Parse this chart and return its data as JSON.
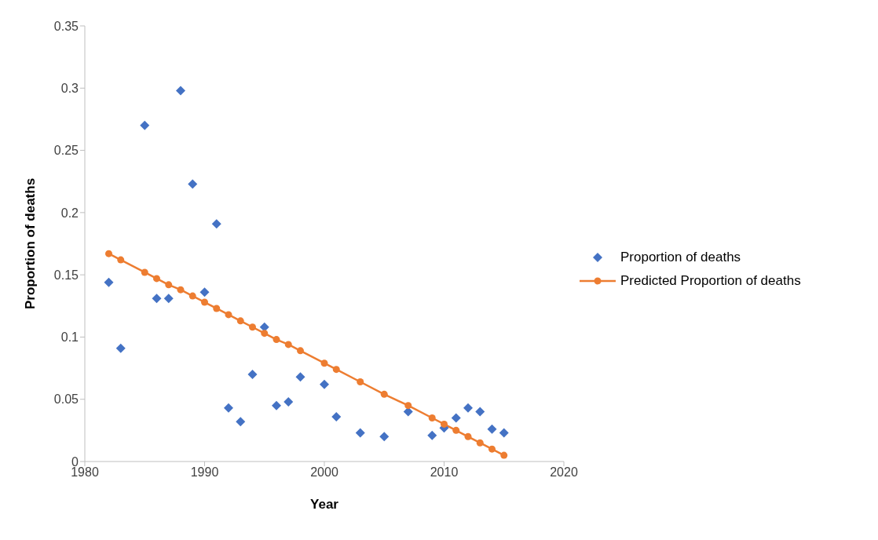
{
  "chart_data": {
    "type": "scatter",
    "xlabel": "Year",
    "ylabel": "Proportion of deaths",
    "x": [
      1982,
      1983,
      1985,
      1986,
      1987,
      1988,
      1989,
      1990,
      1991,
      1992,
      1993,
      1994,
      1995,
      1996,
      1997,
      1998,
      2000,
      2001,
      2003,
      2005,
      2007,
      2009,
      2010,
      2011,
      2012,
      2013,
      2014,
      2015
    ],
    "series": [
      {
        "name": "Proportion of deaths",
        "marker": "diamond",
        "color": "#4472c4",
        "values": [
          0.144,
          0.091,
          0.27,
          0.131,
          0.131,
          0.298,
          0.223,
          0.136,
          0.191,
          0.043,
          0.032,
          0.07,
          0.108,
          0.045,
          0.048,
          0.068,
          0.062,
          0.036,
          0.023,
          0.02,
          0.04,
          0.021,
          0.027,
          0.035,
          0.043,
          0.04,
          0.026,
          0.023
        ]
      },
      {
        "name": "Predicted Proportion of deaths",
        "type": "line",
        "marker": "circle",
        "line_style": "solid",
        "color": "#ed7d31",
        "values": [
          0.167,
          0.162,
          0.152,
          0.147,
          0.142,
          0.138,
          0.133,
          0.128,
          0.123,
          0.118,
          0.113,
          0.108,
          0.103,
          0.098,
          0.094,
          0.089,
          0.079,
          0.074,
          0.064,
          0.054,
          0.045,
          0.035,
          0.03,
          0.025,
          0.02,
          0.015,
          0.01,
          0.005
        ]
      }
    ],
    "xlim": [
      1980,
      2020
    ],
    "xticks": [
      1980,
      1990,
      2000,
      2010,
      2020
    ],
    "ylim": [
      0,
      0.35
    ],
    "yticks": [
      0,
      0.05,
      0.1,
      0.15,
      0.2,
      0.25,
      0.3,
      0.35
    ],
    "grid": false,
    "legend": "right"
  }
}
